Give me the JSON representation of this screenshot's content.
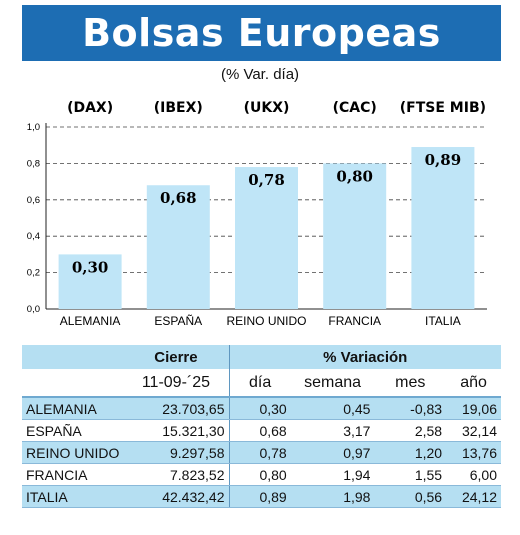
{
  "header": {
    "title": "Bolsas Europeas",
    "subtitle": "(% Var. día)"
  },
  "chart_data": {
    "type": "bar",
    "categories": [
      "ALEMANIA",
      "ESPAÑA",
      "REINO UNIDO",
      "FRANCIA",
      "ITALIA"
    ],
    "series_labels": [
      "(DAX)",
      "(IBEX)",
      "(UKX)",
      "(CAC)",
      "(FTSE MIB)"
    ],
    "values": [
      0.3,
      0.68,
      0.78,
      0.8,
      0.89
    ],
    "value_labels": [
      "0,30",
      "0,68",
      "0,78",
      "0,80",
      "0,89"
    ],
    "yticks": [
      "0,0",
      "0,2",
      "0,4",
      "0,6",
      "0,8",
      "1,0"
    ],
    "ylim": [
      0,
      1.0
    ],
    "grid": "horizontal dashed",
    "bar_color": "#bfe5f7"
  },
  "table": {
    "group_headers": {
      "cierre": "Cierre",
      "variacion": "% Variación"
    },
    "columns": [
      "11-09-´25",
      "día",
      "semana",
      "mes",
      "año"
    ],
    "rows": [
      {
        "name": "ALEMANIA",
        "cierre": "23.703,65",
        "dia": "0,30",
        "semana": "0,45",
        "mes": "-0,83",
        "ano": "19,06"
      },
      {
        "name": "ESPAÑA",
        "cierre": "15.321,30",
        "dia": "0,68",
        "semana": "3,17",
        "mes": "2,58",
        "ano": "32,14"
      },
      {
        "name": "REINO UNIDO",
        "cierre": "9.297,58",
        "dia": "0,78",
        "semana": "0,97",
        "mes": "1,20",
        "ano": "13,76"
      },
      {
        "name": "FRANCIA",
        "cierre": "7.823,52",
        "dia": "0,80",
        "semana": "1,94",
        "mes": "1,55",
        "ano": "6,00"
      },
      {
        "name": "ITALIA",
        "cierre": "42.432,42",
        "dia": "0,89",
        "semana": "1,98",
        "mes": "0,56",
        "ano": "24,12"
      }
    ]
  },
  "colors": {
    "title_bar": "#1d6db3",
    "table_band": "#b5dff2",
    "bars": "#bfe5f7"
  }
}
